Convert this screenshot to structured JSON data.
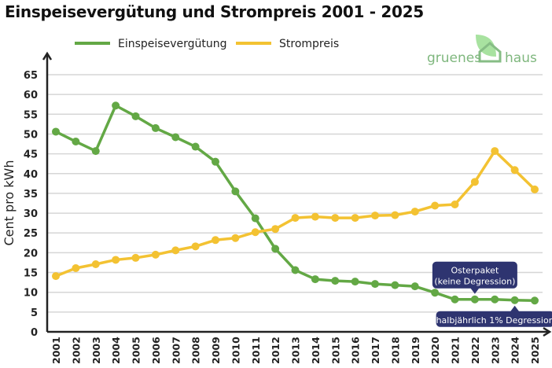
{
  "chart_data": {
    "type": "line",
    "title": "Einspeisevergütung und Strompreis 2001 - 2025",
    "ylabel": "Cent pro kWh",
    "xlabel": "",
    "ylim": [
      0,
      65
    ],
    "yticks": [
      0,
      5,
      10,
      15,
      20,
      25,
      30,
      35,
      40,
      45,
      50,
      55,
      60,
      65
    ],
    "grid": true,
    "legend_position": "top",
    "categories": [
      "2001",
      "2002",
      "2003",
      "2004",
      "2005",
      "2006",
      "2007",
      "2008",
      "2009",
      "2010",
      "2011",
      "2012",
      "2013",
      "2014",
      "2015",
      "2016",
      "2017",
      "2018",
      "2019",
      "2020",
      "2021",
      "2022",
      "2023",
      "2024",
      "2025"
    ],
    "series": [
      {
        "name": "Einspeisevergütung",
        "color": "#63a845",
        "values": [
          50.6,
          48.1,
          45.7,
          57.2,
          54.5,
          51.5,
          49.2,
          46.8,
          43.0,
          35.5,
          28.7,
          21.0,
          15.6,
          13.3,
          12.9,
          12.7,
          12.1,
          11.8,
          11.5,
          9.9,
          8.2,
          8.2,
          8.2,
          8.0,
          7.9
        ]
      },
      {
        "name": "Strompreis",
        "color": "#f3c232",
        "values": [
          14.1,
          16.1,
          17.1,
          18.2,
          18.7,
          19.5,
          20.6,
          21.6,
          23.2,
          23.7,
          25.2,
          26.0,
          28.8,
          29.1,
          28.8,
          28.8,
          29.4,
          29.5,
          30.4,
          31.9,
          32.2,
          37.9,
          45.7,
          40.9,
          36.0
        ]
      }
    ],
    "annotations": [
      {
        "lines": [
          "Osterpaket",
          "(keine Degression)"
        ],
        "x": "2022",
        "series": "Einspeisevergütung",
        "position": "above"
      },
      {
        "lines": [
          "halbjährlich 1% Degression"
        ],
        "x": "2024",
        "series": "Einspeisevergütung",
        "position": "below"
      }
    ],
    "annotation_color": "#2e3470"
  },
  "logo": {
    "text_left": "gruenes",
    "text_right": "haus",
    "color": "#7fb77e",
    "leaf_color": "#a8e2a0"
  }
}
